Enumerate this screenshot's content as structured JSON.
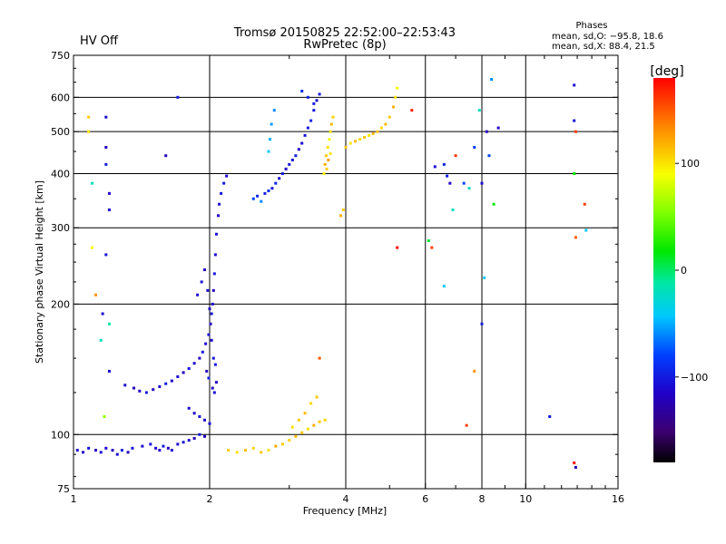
{
  "status": {
    "label": "HV Off",
    "color": "#d40000"
  },
  "title": {
    "line1": "Tromsø 20150825 22:52:00–22:53:43",
    "line2": "RwPretec (8p)"
  },
  "stats": {
    "header": "Phases",
    "line_o": "mean, sd,O: −95.8, 18.6",
    "line_x": "mean, sd,X:  88.4, 21.5"
  },
  "colorbar": {
    "label": "[deg]",
    "ticks": [
      "100",
      "0",
      "−100"
    ],
    "tick_values": [
      100,
      0,
      -100
    ],
    "range": [
      -180,
      180
    ]
  },
  "chart_data": {
    "type": "scatter",
    "xlabel": "Frequency [MHz]",
    "ylabel": "Stationary phase Virtual Height [km]",
    "x_scale": "log2",
    "y_scale": "log",
    "xlim": [
      1,
      16
    ],
    "ylim": [
      75,
      750
    ],
    "x_ticks": [
      1,
      2,
      4,
      6,
      8,
      10,
      16
    ],
    "x_tick_labels": [
      "1",
      "2",
      "4",
      "6",
      "8",
      "10",
      "16"
    ],
    "y_ticks": [
      75,
      100,
      200,
      300,
      400,
      500,
      600,
      750
    ],
    "y_tick_labels": [
      "75",
      "100",
      "200",
      "300",
      "400",
      "500",
      "600",
      "750"
    ],
    "grid": true,
    "series": [
      {
        "points": [
          [
            1.02,
            92,
            -110
          ],
          [
            1.05,
            91,
            -115
          ],
          [
            1.08,
            93,
            -105
          ],
          [
            1.12,
            92,
            -120
          ],
          [
            1.15,
            91,
            -108
          ],
          [
            1.18,
            93,
            -112
          ],
          [
            1.22,
            92,
            -118
          ],
          [
            1.25,
            90,
            -110
          ],
          [
            1.28,
            92,
            -100
          ],
          [
            1.32,
            91,
            -115
          ],
          [
            1.35,
            93,
            -108
          ],
          [
            1.42,
            94,
            -112
          ],
          [
            1.48,
            95,
            -105
          ],
          [
            1.52,
            93,
            -110
          ],
          [
            1.55,
            92,
            -115
          ],
          [
            1.58,
            94,
            -100
          ],
          [
            1.62,
            93,
            -120
          ],
          [
            1.65,
            92,
            -108
          ],
          [
            1.7,
            95,
            -112
          ],
          [
            1.75,
            96,
            -105
          ],
          [
            1.8,
            97,
            -110
          ],
          [
            1.85,
            98,
            -118
          ],
          [
            1.9,
            100,
            -102
          ],
          [
            1.95,
            99,
            -115
          ],
          [
            1.3,
            130,
            -110
          ],
          [
            1.36,
            128,
            -120
          ],
          [
            1.4,
            126,
            -115
          ],
          [
            1.45,
            125,
            -105
          ],
          [
            1.5,
            127,
            -118
          ],
          [
            1.55,
            129,
            -110
          ],
          [
            1.6,
            131,
            -100
          ],
          [
            1.65,
            133,
            -112
          ],
          [
            1.7,
            136,
            -108
          ],
          [
            1.75,
            139,
            -115
          ],
          [
            1.8,
            142,
            -105
          ],
          [
            1.85,
            146,
            -110
          ],
          [
            1.9,
            150,
            -118
          ],
          [
            1.93,
            155,
            -102
          ],
          [
            1.96,
            162,
            -112
          ],
          [
            1.99,
            170,
            -108
          ],
          [
            2.01,
            180,
            -115
          ],
          [
            2.02,
            190,
            -105
          ],
          [
            2.03,
            200,
            -110
          ],
          [
            2.04,
            215,
            -118
          ],
          [
            2.05,
            235,
            -102
          ],
          [
            2.06,
            260,
            -112
          ],
          [
            2.07,
            290,
            -108
          ],
          [
            2.09,
            320,
            -115
          ],
          [
            2.1,
            340,
            -110
          ],
          [
            2.12,
            360,
            -105
          ],
          [
            2.15,
            380,
            -100
          ],
          [
            2.18,
            395,
            -112
          ],
          [
            1.88,
            210,
            -110
          ],
          [
            1.92,
            225,
            -105
          ],
          [
            1.95,
            240,
            -115
          ],
          [
            1.98,
            215,
            -108
          ],
          [
            2.0,
            195,
            -112
          ],
          [
            2.02,
            165,
            -110
          ],
          [
            2.04,
            150,
            -105
          ],
          [
            1.97,
            140,
            -118
          ],
          [
            1.99,
            135,
            -100
          ],
          [
            2.03,
            128,
            -112
          ],
          [
            2.05,
            125,
            -108
          ],
          [
            2.07,
            132,
            -115
          ],
          [
            2.06,
            145,
            -102
          ],
          [
            1.8,
            115,
            -110
          ],
          [
            1.85,
            112,
            -115
          ],
          [
            1.9,
            110,
            -105
          ],
          [
            1.95,
            108,
            -112
          ],
          [
            2.0,
            106,
            -108
          ],
          [
            2.5,
            350,
            -80
          ],
          [
            2.55,
            355,
            -95
          ],
          [
            2.6,
            345,
            -60
          ],
          [
            2.65,
            360,
            -100
          ],
          [
            2.7,
            365,
            -90
          ],
          [
            2.75,
            370,
            -105
          ],
          [
            2.8,
            380,
            -95
          ],
          [
            2.85,
            390,
            -110
          ],
          [
            2.9,
            400,
            -100
          ],
          [
            2.95,
            410,
            -115
          ],
          [
            3.0,
            420,
            -105
          ],
          [
            3.05,
            430,
            -110
          ],
          [
            3.1,
            440,
            -100
          ],
          [
            3.15,
            455,
            -115
          ],
          [
            3.2,
            470,
            -110
          ],
          [
            3.25,
            490,
            -105
          ],
          [
            3.3,
            510,
            -100
          ],
          [
            3.35,
            530,
            -95
          ],
          [
            3.4,
            560,
            -105
          ],
          [
            3.45,
            590,
            -110
          ],
          [
            3.5,
            610,
            -100
          ],
          [
            2.7,
            450,
            -40
          ],
          [
            2.72,
            480,
            -50
          ],
          [
            2.74,
            520,
            -55
          ],
          [
            2.78,
            560,
            -60
          ],
          [
            3.2,
            620,
            -90
          ],
          [
            3.3,
            600,
            -95
          ],
          [
            3.4,
            580,
            -100
          ],
          [
            3.6,
            420,
            120
          ],
          [
            3.62,
            440,
            110
          ],
          [
            3.65,
            460,
            100
          ],
          [
            3.68,
            480,
            90
          ],
          [
            3.7,
            500,
            100
          ],
          [
            3.72,
            520,
            115
          ],
          [
            3.75,
            540,
            105
          ],
          [
            3.58,
            400,
            95
          ],
          [
            3.63,
            410,
            110
          ],
          [
            3.66,
            430,
            125
          ],
          [
            3.7,
            445,
            100
          ],
          [
            4.0,
            460,
            110
          ],
          [
            4.1,
            470,
            100
          ],
          [
            4.2,
            475,
            115
          ],
          [
            4.3,
            480,
            105
          ],
          [
            4.4,
            485,
            110
          ],
          [
            4.5,
            490,
            100
          ],
          [
            4.6,
            495,
            120
          ],
          [
            4.7,
            500,
            110
          ],
          [
            4.8,
            510,
            105
          ],
          [
            4.9,
            520,
            115
          ],
          [
            5.0,
            540,
            110
          ],
          [
            5.1,
            570,
            120
          ],
          [
            5.15,
            600,
            100
          ],
          [
            5.2,
            630,
            90
          ],
          [
            2.2,
            92,
            110
          ],
          [
            2.3,
            91,
            100
          ],
          [
            2.4,
            92,
            115
          ],
          [
            2.5,
            93,
            105
          ],
          [
            2.6,
            91,
            110
          ],
          [
            2.7,
            92,
            100
          ],
          [
            2.8,
            94,
            120
          ],
          [
            2.9,
            95,
            110
          ],
          [
            3.0,
            97,
            105
          ],
          [
            3.1,
            99,
            115
          ],
          [
            3.2,
            101,
            110
          ],
          [
            3.3,
            103,
            100
          ],
          [
            3.4,
            105,
            120
          ],
          [
            3.5,
            107,
            110
          ],
          [
            3.6,
            108,
            105
          ],
          [
            3.05,
            104,
            100
          ],
          [
            3.15,
            108,
            110
          ],
          [
            3.25,
            112,
            115
          ],
          [
            3.35,
            118,
            105
          ],
          [
            3.45,
            122,
            110
          ],
          [
            1.08,
            540,
            110
          ],
          [
            1.08,
            500,
            100
          ],
          [
            1.1,
            270,
            90
          ],
          [
            1.12,
            210,
            130
          ],
          [
            1.1,
            380,
            -20
          ],
          [
            1.18,
            540,
            -110
          ],
          [
            1.18,
            460,
            -120
          ],
          [
            1.18,
            420,
            -100
          ],
          [
            1.2,
            360,
            -115
          ],
          [
            1.2,
            330,
            -110
          ],
          [
            1.18,
            260,
            -105
          ],
          [
            1.16,
            190,
            -110
          ],
          [
            1.15,
            165,
            -20
          ],
          [
            1.2,
            180,
            -10
          ],
          [
            1.17,
            110,
            60
          ],
          [
            1.2,
            140,
            -110
          ],
          [
            1.6,
            440,
            -120
          ],
          [
            1.7,
            600,
            -100
          ],
          [
            3.9,
            320,
            120
          ],
          [
            3.95,
            330,
            110
          ],
          [
            3.5,
            150,
            150
          ],
          [
            5.2,
            270,
            180
          ],
          [
            5.6,
            560,
            170
          ],
          [
            6.1,
            280,
            10
          ],
          [
            6.2,
            270,
            160
          ],
          [
            6.3,
            415,
            -110
          ],
          [
            6.6,
            420,
            -95
          ],
          [
            6.6,
            220,
            -40
          ],
          [
            6.7,
            395,
            -100
          ],
          [
            6.8,
            380,
            -115
          ],
          [
            6.9,
            330,
            -20
          ],
          [
            7.0,
            440,
            160
          ],
          [
            7.3,
            380,
            -80
          ],
          [
            7.4,
            105,
            160
          ],
          [
            7.5,
            370,
            -20
          ],
          [
            7.7,
            460,
            -80
          ],
          [
            7.9,
            560,
            -20
          ],
          [
            8.0,
            380,
            -110
          ],
          [
            8.0,
            180,
            -100
          ],
          [
            8.1,
            230,
            -40
          ],
          [
            8.2,
            500,
            -120
          ],
          [
            8.3,
            440,
            -80
          ],
          [
            8.7,
            510,
            -115
          ],
          [
            8.4,
            660,
            -60
          ],
          [
            8.5,
            340,
            20
          ],
          [
            7.7,
            140,
            130
          ],
          [
            11.3,
            110,
            -100
          ],
          [
            12.8,
            640,
            -110
          ],
          [
            12.8,
            530,
            -105
          ],
          [
            12.9,
            500,
            160
          ],
          [
            12.8,
            400,
            20
          ],
          [
            12.9,
            285,
            150
          ],
          [
            13.5,
            340,
            160
          ],
          [
            13.6,
            296,
            -40
          ],
          [
            12.8,
            86,
            180
          ],
          [
            12.9,
            84,
            -120
          ]
        ]
      }
    ]
  }
}
